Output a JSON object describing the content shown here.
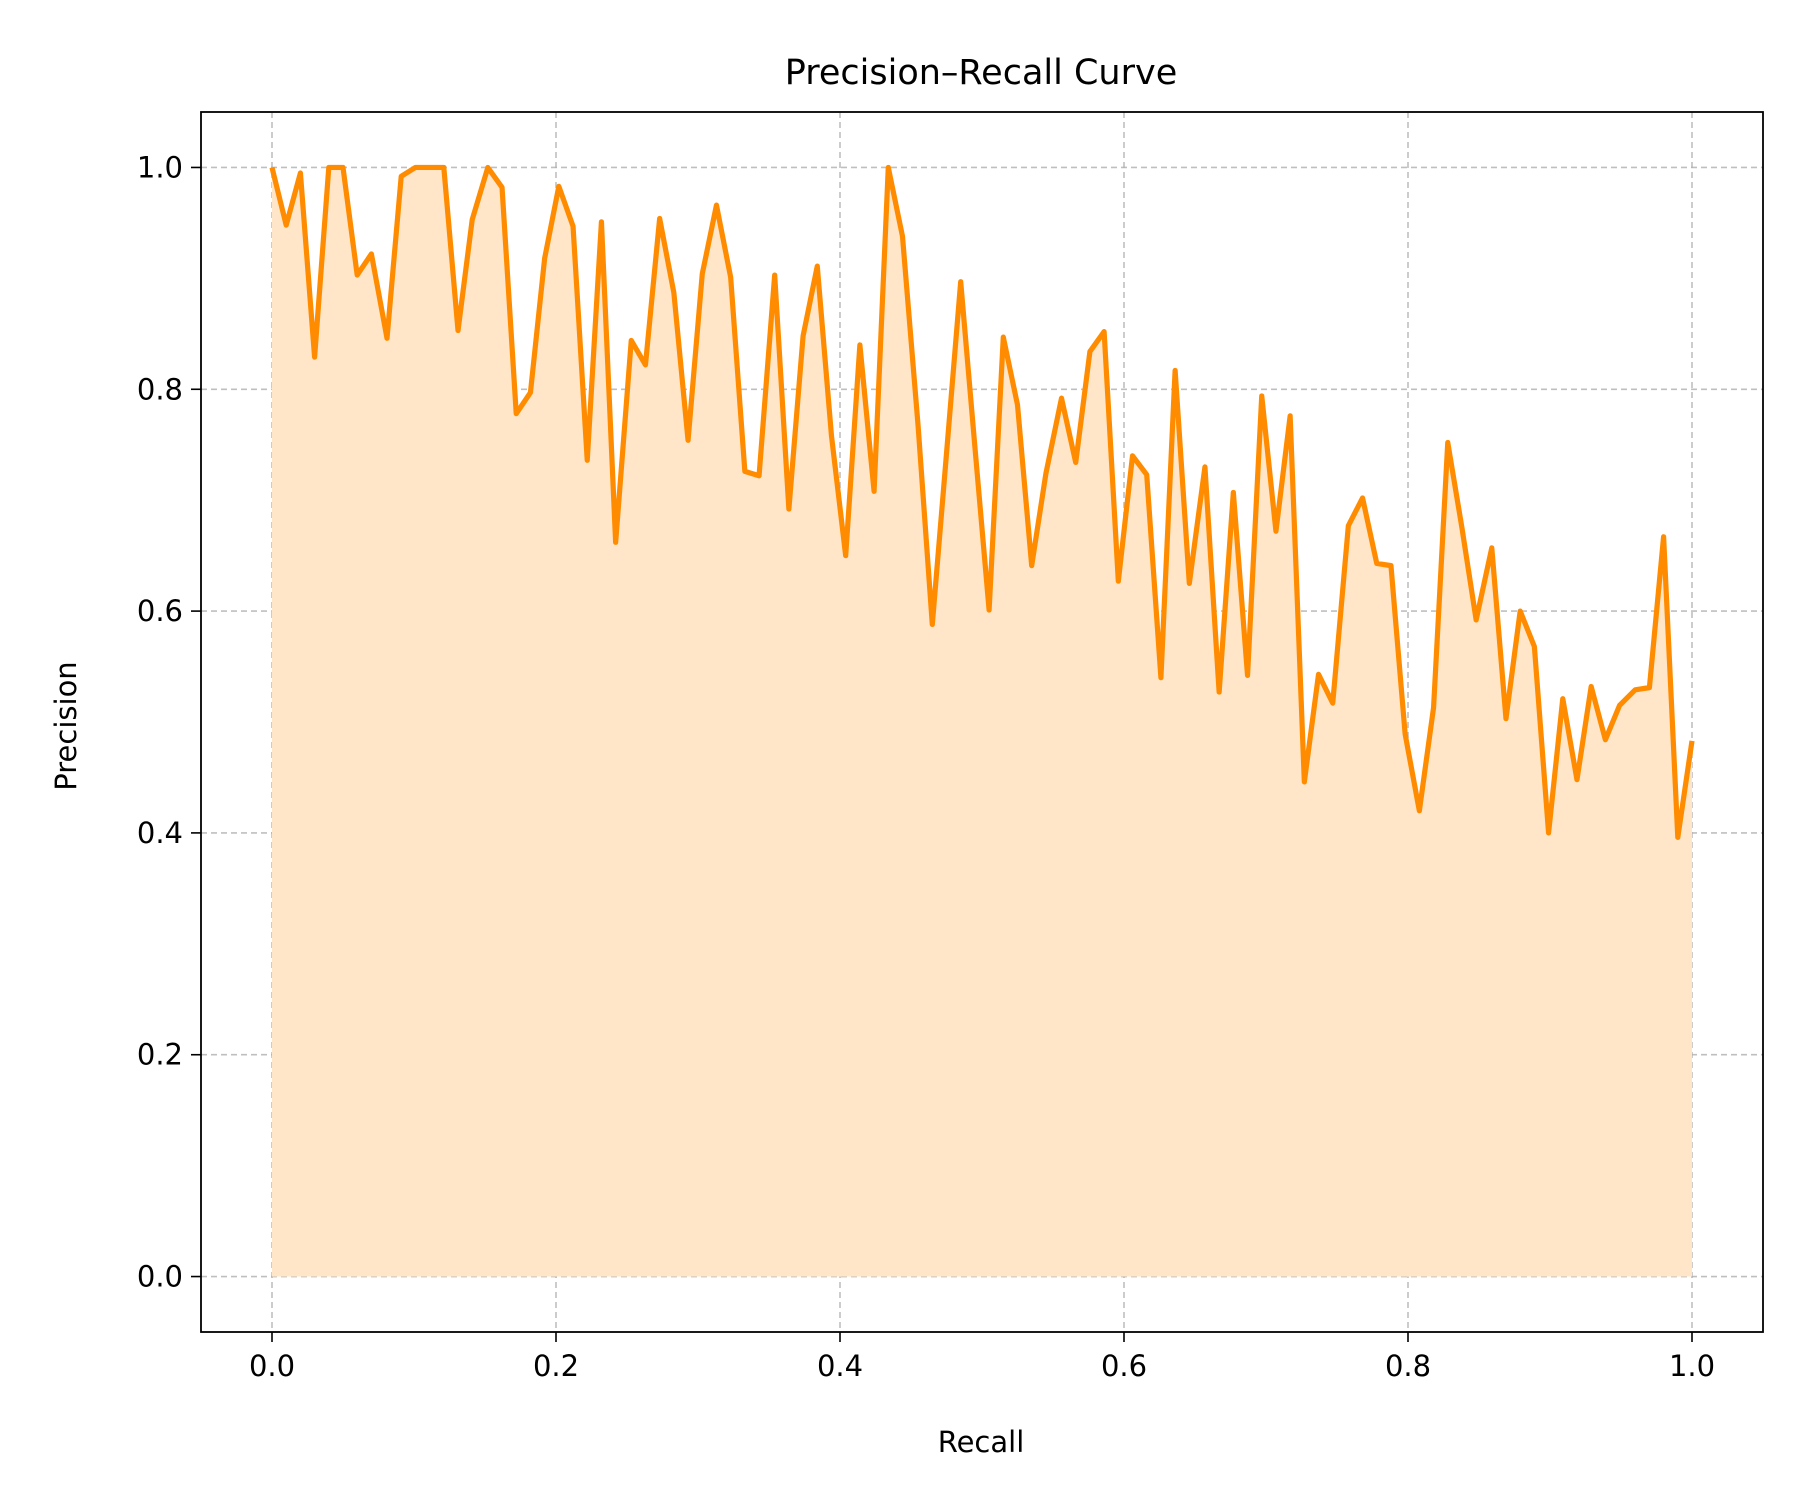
{
  "chart_data": {
    "type": "area",
    "title": "Precision–Recall Curve",
    "xlabel": "Recall",
    "ylabel": "Precision",
    "xlim": [
      -0.05,
      1.05
    ],
    "ylim": [
      -0.05,
      1.05
    ],
    "xticks": [
      0.0,
      0.2,
      0.4,
      0.6,
      0.8,
      1.0
    ],
    "xtick_labels": [
      "0.0",
      "0.2",
      "0.4",
      "0.6",
      "0.8",
      "1.0"
    ],
    "yticks": [
      0.0,
      0.2,
      0.4,
      0.6,
      0.8,
      1.0
    ],
    "ytick_labels": [
      "0.0",
      "0.2",
      "0.4",
      "0.6",
      "0.8",
      "1.0"
    ],
    "grid": true,
    "line_color": "#ff8c00",
    "fill_color": "#ffe6c8",
    "series": [
      {
        "x": [
          0.0,
          0.01,
          0.02,
          0.03,
          0.04,
          0.05,
          0.06,
          0.07,
          0.081,
          0.091,
          0.101,
          0.111,
          0.121,
          0.131,
          0.141,
          0.152,
          0.162,
          0.172,
          0.182,
          0.192,
          0.202,
          0.212,
          0.222,
          0.232,
          0.242,
          0.253,
          0.263,
          0.273,
          0.283,
          0.293,
          0.303,
          0.313,
          0.323,
          0.333,
          0.343,
          0.354,
          0.364,
          0.374,
          0.384,
          0.394,
          0.404,
          0.414,
          0.424,
          0.434,
          0.444,
          0.455,
          0.465,
          0.475,
          0.485,
          0.495,
          0.505,
          0.515,
          0.525,
          0.535,
          0.545,
          0.556,
          0.566,
          0.576,
          0.586,
          0.596,
          0.606,
          0.616,
          0.626,
          0.636,
          0.646,
          0.657,
          0.667,
          0.677,
          0.687,
          0.697,
          0.707,
          0.717,
          0.727,
          0.737,
          0.747,
          0.758,
          0.768,
          0.778,
          0.788,
          0.798,
          0.808,
          0.818,
          0.828,
          0.838,
          0.848,
          0.859,
          0.869,
          0.879,
          0.889,
          0.899,
          0.909,
          0.919,
          0.929,
          0.939,
          0.949,
          0.96,
          0.97,
          0.98,
          0.99,
          1.0
        ],
        "y": [
          1.0,
          0.948,
          0.995,
          0.829,
          1.0,
          1.0,
          0.903,
          0.922,
          0.846,
          0.992,
          1.0,
          1.0,
          1.0,
          0.853,
          0.953,
          1.0,
          0.982,
          0.778,
          0.797,
          0.918,
          0.983,
          0.947,
          0.736,
          0.951,
          0.662,
          0.844,
          0.822,
          0.954,
          0.887,
          0.754,
          0.904,
          0.966,
          0.901,
          0.726,
          0.722,
          0.903,
          0.692,
          0.848,
          0.911,
          0.758,
          0.65,
          0.84,
          0.708,
          1.0,
          0.938,
          0.767,
          0.588,
          0.742,
          0.897,
          0.748,
          0.601,
          0.847,
          0.786,
          0.641,
          0.724,
          0.792,
          0.734,
          0.834,
          0.852,
          0.627,
          0.74,
          0.723,
          0.54,
          0.817,
          0.625,
          0.73,
          0.527,
          0.707,
          0.542,
          0.794,
          0.672,
          0.776,
          0.446,
          0.543,
          0.517,
          0.677,
          0.702,
          0.643,
          0.641,
          0.489,
          0.42,
          0.513,
          0.752,
          0.675,
          0.592,
          0.657,
          0.503,
          0.6,
          0.568,
          0.4,
          0.521,
          0.448,
          0.532,
          0.484,
          0.515,
          0.529,
          0.531,
          0.667,
          0.396,
          0.483
        ]
      }
    ]
  }
}
